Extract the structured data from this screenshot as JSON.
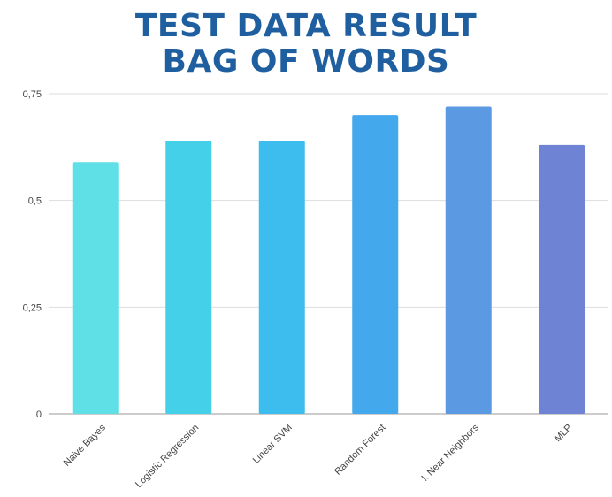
{
  "chart_data": {
    "type": "bar",
    "title": "TEST DATA RESULT",
    "subtitle": "BAG OF WORDS",
    "xlabel": "",
    "ylabel": "",
    "categories": [
      "Naive Bayes",
      "Logistic Regression",
      "Linear SVM",
      "Random Forest",
      "k Near Neighbors",
      "MLP"
    ],
    "values": [
      0.59,
      0.64,
      0.64,
      0.7,
      0.72,
      0.63
    ],
    "ylim": [
      0,
      0.75
    ],
    "yticks": [
      0,
      0.25,
      0.5,
      0.75
    ],
    "ytick_labels": [
      "0",
      "0,25",
      "0,5",
      "0,75"
    ],
    "grid": true,
    "legend": "none",
    "colors": [
      "#5ee0e6",
      "#45d0ea",
      "#3dbdee",
      "#44a8ec",
      "#5b99e3",
      "#6e83d4"
    ],
    "title_color": "#1f5fa0"
  }
}
